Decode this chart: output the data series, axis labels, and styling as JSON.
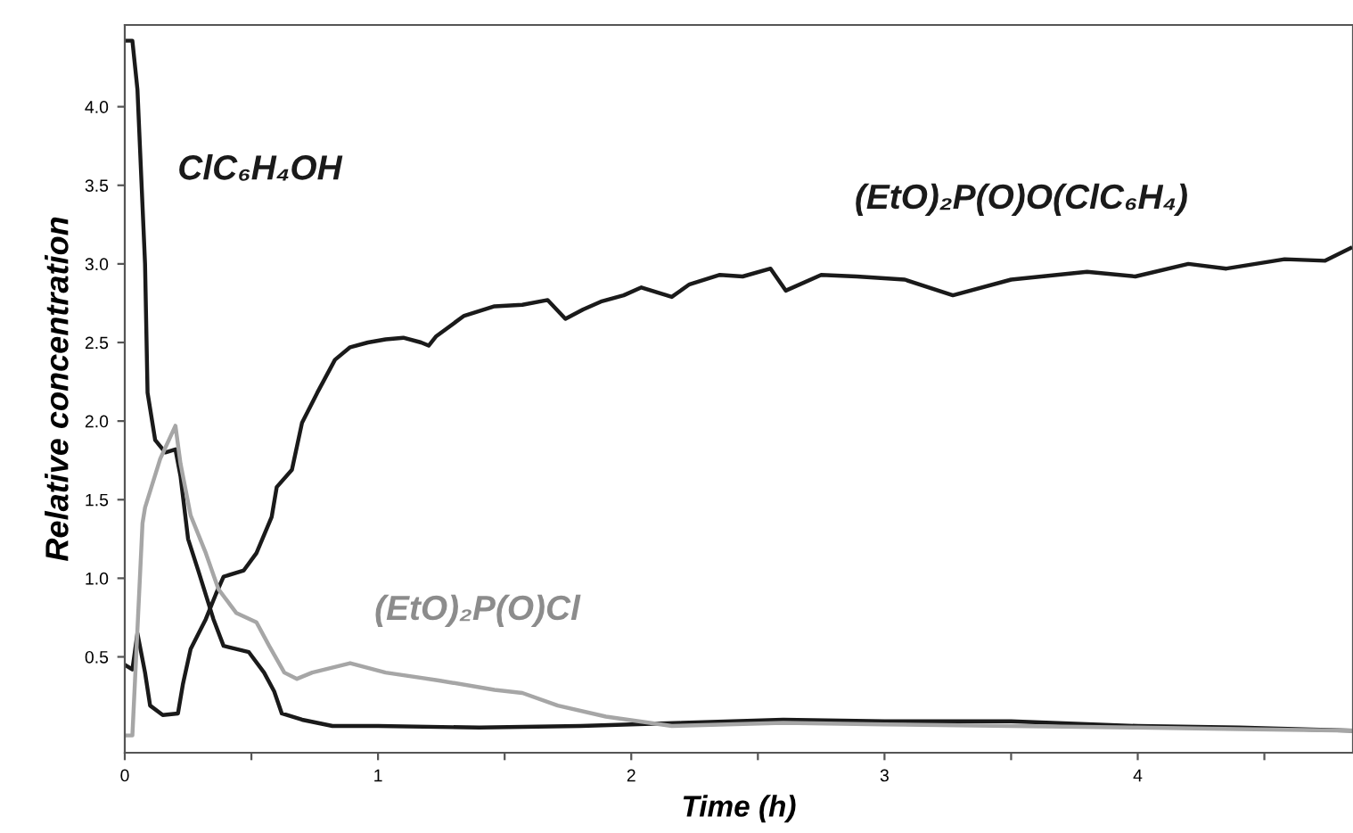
{
  "chart_data": {
    "type": "line",
    "xlabel": "Time (h)",
    "ylabel": "Relative concentration",
    "xlim": [
      0,
      4.85
    ],
    "ylim": [
      -0.11,
      4.52
    ],
    "xticks": [
      0,
      {
        "value": 0.5,
        "label": null
      },
      1,
      {
        "value": 1.5,
        "label": null
      },
      2,
      {
        "value": 2.5,
        "label": null
      },
      3,
      {
        "value": 3.5,
        "label": null
      },
      4,
      {
        "value": 4.5,
        "label": null
      }
    ],
    "yticks": [
      0.5,
      {
        "value": 1,
        "label": "1.0"
      },
      1.5,
      {
        "value": 2,
        "label": "2.0"
      },
      2.5,
      {
        "value": 3,
        "label": "3.0"
      },
      3.5,
      {
        "value": 4,
        "label": "4.0"
      }
    ],
    "marker": "none",
    "line_style": "solid",
    "series": [
      {
        "name": "ClC₆H₄OH",
        "color": "#1a1a1a",
        "x": [
          0,
          0.03,
          0.05,
          0.08,
          0.09,
          0.12,
          0.16,
          0.2,
          0.22,
          0.25,
          0.29,
          0.35,
          0.39,
          0.49,
          0.55,
          0.59,
          0.62,
          0.7,
          0.82,
          1.0,
          1.4,
          1.8,
          2.2,
          2.6,
          3.0,
          3.5,
          4.0,
          4.4,
          4.85
        ],
        "values": [
          4.42,
          4.42,
          4.11,
          3.0,
          2.18,
          1.88,
          1.8,
          1.82,
          1.65,
          1.25,
          1.05,
          0.74,
          0.57,
          0.53,
          0.4,
          0.28,
          0.14,
          0.1,
          0.06,
          0.06,
          0.05,
          0.06,
          0.08,
          0.1,
          0.09,
          0.09,
          0.06,
          0.05,
          0.03
        ]
      },
      {
        "name": "(EtO)₂P(O)O(ClC₆H₄)",
        "color": "#1a1a1a",
        "x": [
          0,
          0.03,
          0.05,
          0.08,
          0.1,
          0.15,
          0.21,
          0.23,
          0.26,
          0.32,
          0.36,
          0.39,
          0.47,
          0.52,
          0.58,
          0.6,
          0.66,
          0.7,
          0.76,
          0.83,
          0.89,
          0.96,
          1.03,
          1.1,
          1.17,
          1.2,
          1.23,
          1.34,
          1.46,
          1.57,
          1.67,
          1.74,
          1.81,
          1.88,
          1.97,
          2.04,
          2.16,
          2.23,
          2.35,
          2.44,
          2.55,
          2.61,
          2.75,
          2.89,
          3.08,
          3.27,
          3.5,
          3.8,
          3.99,
          4.2,
          4.35,
          4.58,
          4.74,
          4.84
        ],
        "values": [
          0.45,
          0.42,
          0.65,
          0.4,
          0.19,
          0.13,
          0.14,
          0.33,
          0.55,
          0.74,
          0.9,
          1.01,
          1.05,
          1.16,
          1.39,
          1.58,
          1.69,
          1.99,
          2.18,
          2.39,
          2.47,
          2.5,
          2.52,
          2.53,
          2.5,
          2.48,
          2.54,
          2.67,
          2.73,
          2.74,
          2.77,
          2.65,
          2.71,
          2.76,
          2.8,
          2.85,
          2.79,
          2.87,
          2.93,
          2.92,
          2.97,
          2.83,
          2.93,
          2.92,
          2.9,
          2.8,
          2.9,
          2.95,
          2.92,
          3.0,
          2.97,
          3.03,
          3.02,
          3.1
        ]
      },
      {
        "name": "(EtO)₂P(O)Cl",
        "color": "#a6a6a6",
        "x": [
          0,
          0.03,
          0.07,
          0.08,
          0.14,
          0.2,
          0.22,
          0.26,
          0.32,
          0.37,
          0.44,
          0.52,
          0.57,
          0.63,
          0.68,
          0.74,
          0.89,
          1.03,
          1.24,
          1.46,
          1.57,
          1.71,
          1.9,
          2.16,
          2.6,
          3.0,
          3.5,
          4.0,
          4.4,
          4.85
        ],
        "values": [
          0.0,
          0.0,
          1.35,
          1.45,
          1.76,
          1.97,
          1.73,
          1.4,
          1.16,
          0.93,
          0.78,
          0.72,
          0.57,
          0.4,
          0.36,
          0.4,
          0.46,
          0.4,
          0.35,
          0.29,
          0.27,
          0.19,
          0.12,
          0.06,
          0.08,
          0.07,
          0.06,
          0.05,
          0.04,
          0.03
        ]
      }
    ]
  }
}
